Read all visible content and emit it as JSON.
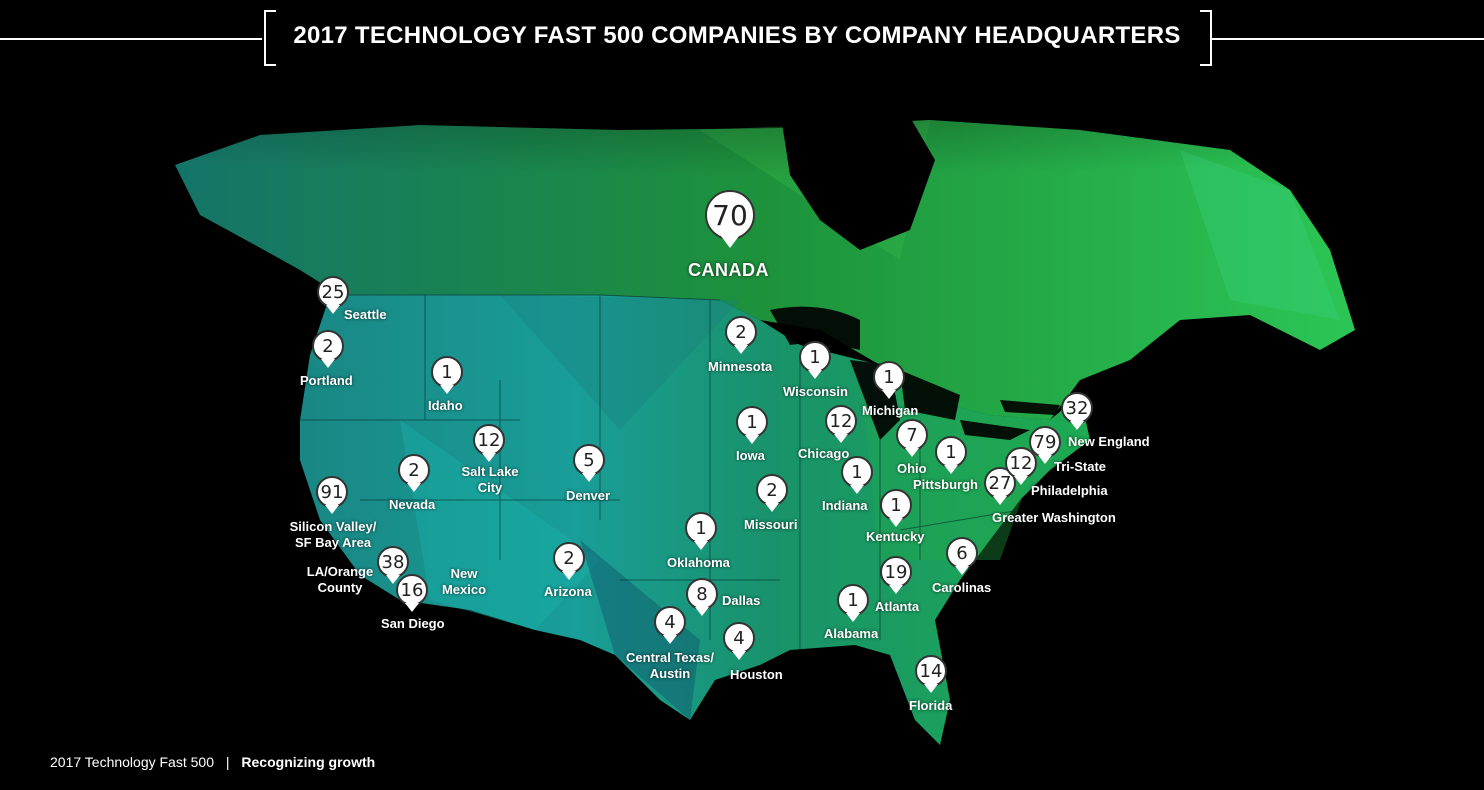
{
  "header": {
    "title": "2017 TECHNOLOGY FAST 500 COMPANIES BY COMPANY HEADQUARTERS"
  },
  "footer": {
    "left": "2017 Technology Fast 500",
    "separator": "|",
    "right": "Recognizing growth"
  },
  "colors": {
    "map_dark": "#1a6b6e",
    "map_mid": "#1aa07a",
    "map_light": "#2bd05a",
    "accent_cyan": "#18b6b0"
  },
  "regions": [
    {
      "name": "CANADA",
      "count": 70
    },
    {
      "name": "Seattle",
      "count": 25
    },
    {
      "name": "Portland",
      "count": 2
    },
    {
      "name": "Idaho",
      "count": 1
    },
    {
      "name": "Salt Lake City",
      "count": 12
    },
    {
      "name": "Nevada",
      "count": 2
    },
    {
      "name": "Silicon Valley/ SF Bay Area",
      "count": 91
    },
    {
      "name": "LA/Orange County",
      "count": 38
    },
    {
      "name": "San Diego",
      "count": 16
    },
    {
      "name": "New Mexico",
      "count": null
    },
    {
      "name": "Arizona",
      "count": 2
    },
    {
      "name": "Denver",
      "count": 5
    },
    {
      "name": "Minnesota",
      "count": 2
    },
    {
      "name": "Iowa",
      "count": 1
    },
    {
      "name": "Missouri",
      "count": 2
    },
    {
      "name": "Oklahoma",
      "count": 1
    },
    {
      "name": "Dallas",
      "count": 8
    },
    {
      "name": "Central Texas/ Austin",
      "count": 4
    },
    {
      "name": "Houston",
      "count": 4
    },
    {
      "name": "Wisconsin",
      "count": 1
    },
    {
      "name": "Chicago",
      "count": 12
    },
    {
      "name": "Michigan",
      "count": 1
    },
    {
      "name": "Indiana",
      "count": 1
    },
    {
      "name": "Ohio",
      "count": 7
    },
    {
      "name": "Pittsburgh",
      "count": 1
    },
    {
      "name": "Kentucky",
      "count": 1
    },
    {
      "name": "Alabama",
      "count": 1
    },
    {
      "name": "Atlanta",
      "count": 19
    },
    {
      "name": "Carolinas",
      "count": 6
    },
    {
      "name": "Florida",
      "count": 14
    },
    {
      "name": "Greater Washington",
      "count": 27
    },
    {
      "name": "Philadelphia",
      "count": 12
    },
    {
      "name": "Tri-State",
      "count": 79
    },
    {
      "name": "New England",
      "count": 32
    }
  ]
}
